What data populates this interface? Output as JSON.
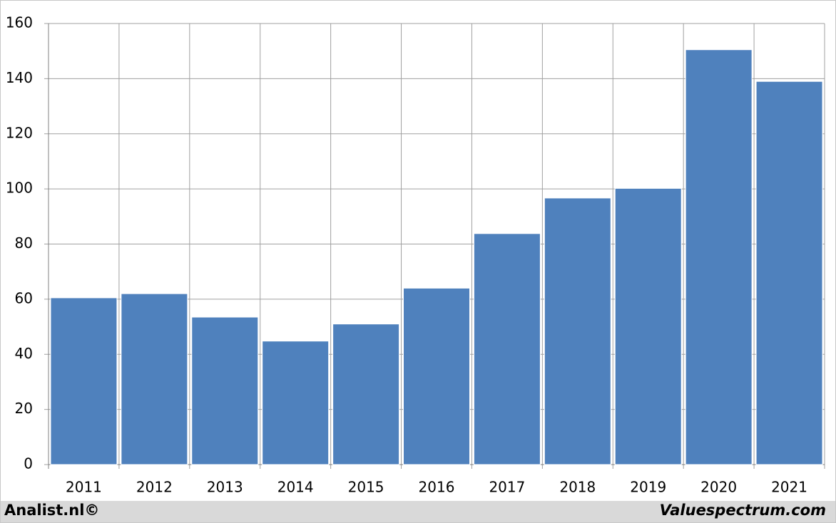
{
  "chart_data": {
    "type": "bar",
    "categories": [
      "2011",
      "2012",
      "2013",
      "2014",
      "2015",
      "2016",
      "2017",
      "2018",
      "2019",
      "2020",
      "2021"
    ],
    "values": [
      60.5,
      62,
      53.5,
      44.8,
      51,
      64,
      83.8,
      96.7,
      100.2,
      150.5,
      139
    ],
    "color": "#4f81bd",
    "ylim": [
      0,
      160
    ],
    "yticks": [
      0,
      20,
      40,
      60,
      80,
      100,
      120,
      140,
      160
    ],
    "grid": true
  },
  "footer": {
    "left": "Analist.nl©",
    "right": "Valuespectrum.com"
  }
}
